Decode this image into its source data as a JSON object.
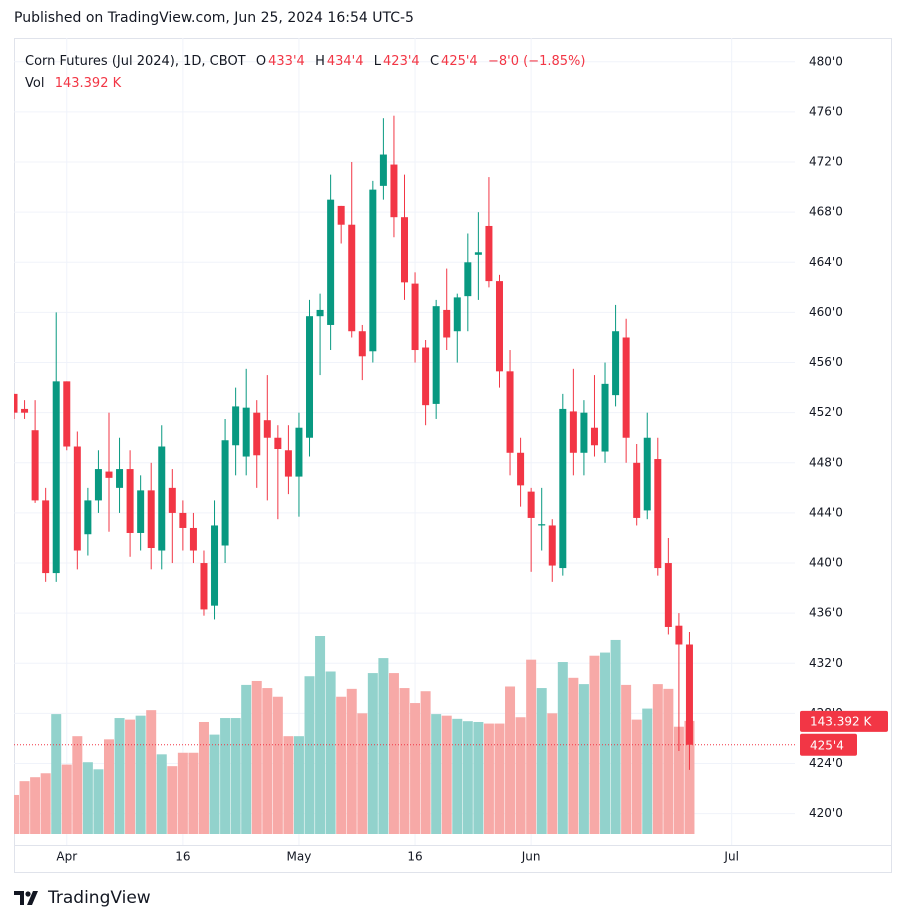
{
  "chart_data": {
    "type": "candlestick",
    "publisher": "Published on TradingView.com, Jun 25, 2024 16:54 UTC-5",
    "title": "Corn Futures (Jul 2024), 1D, CBOT",
    "legend": {
      "open_label": "O",
      "open": "433'4",
      "high_label": "H",
      "high": "434'4",
      "low_label": "L",
      "low": "423'4",
      "close_label": "C",
      "close": "425'4",
      "change": "−8'0 (−1.85%)",
      "volume_label": "Vol",
      "volume": "143.392 K"
    },
    "open": [
      453.5,
      452.3,
      450.6,
      445,
      439.2,
      454.5,
      449.3,
      442.3,
      445,
      447.3,
      446,
      447.5,
      442.4,
      445.8,
      441,
      446,
      444,
      442.8,
      440,
      436.6,
      441.4,
      449.4,
      448.5,
      452,
      451.4,
      450,
      449,
      446.9,
      450,
      459.7,
      459,
      468.5,
      467,
      458.5,
      456.9,
      470.1,
      471.8,
      467.6,
      462.3,
      457.2,
      452.7,
      460.2,
      458.5,
      461.3,
      464.6,
      466.9,
      462.5,
      455.3,
      448.8,
      445.7,
      443,
      443,
      439.6,
      452.1,
      448.8,
      450.8,
      448.9,
      453.4,
      458,
      448,
      444.2,
      448.3,
      440,
      435,
      433.5
    ],
    "high": [
      453.5,
      453,
      453,
      446,
      460,
      454.5,
      450.5,
      446,
      449,
      452,
      450,
      449,
      447,
      448,
      451,
      447.5,
      445,
      444,
      441,
      445,
      451.5,
      454,
      455.5,
      453,
      455,
      451,
      451,
      452,
      461,
      461.5,
      471,
      468.5,
      472,
      459,
      470.5,
      475.5,
      475.7,
      471,
      463.2,
      457.8,
      461,
      463.5,
      461.5,
      466.3,
      468,
      470.8,
      463,
      457,
      450,
      446,
      446,
      443.5,
      453.5,
      455.5,
      453,
      455,
      456,
      460.6,
      459.5,
      449.5,
      452,
      450,
      442,
      436,
      434.5
    ],
    "low": [
      451.5,
      451.5,
      444.8,
      438.5,
      438.5,
      449,
      439.5,
      440.6,
      444,
      442.5,
      444,
      440.5,
      441,
      439.5,
      439.5,
      440,
      441,
      440,
      435.8,
      435.5,
      440,
      447,
      447,
      446,
      445,
      443.5,
      445.5,
      443.7,
      448.5,
      455,
      457,
      465.5,
      458,
      454.6,
      456,
      469,
      466,
      461,
      456,
      451,
      451.5,
      457,
      456,
      458.5,
      461,
      462,
      454,
      447,
      444.5,
      439.3,
      441,
      438.5,
      439,
      447,
      447,
      448.5,
      448,
      452.5,
      448,
      443,
      443.5,
      439,
      434.3,
      425,
      423.5
    ],
    "close": [
      452,
      452,
      445,
      439.2,
      454.5,
      449.3,
      441,
      445,
      447.5,
      446.8,
      447.5,
      442.4,
      445.8,
      441.2,
      449.3,
      444,
      442.8,
      441,
      436.3,
      443,
      449.8,
      452.5,
      452.4,
      448.6,
      450,
      449.1,
      446.9,
      450.8,
      459.7,
      460.2,
      469,
      467,
      458.5,
      456.5,
      469.8,
      472.6,
      467.6,
      462.4,
      457,
      452.6,
      460.5,
      458,
      461.2,
      464,
      464.8,
      462.5,
      455.3,
      448.8,
      446.2,
      443.6,
      443.1,
      439.8,
      452.3,
      448.8,
      452,
      449.4,
      454.3,
      458.5,
      450,
      443.6,
      450,
      439.6,
      434.9,
      433.5,
      425.5
    ],
    "volume": [
      49.5,
      67,
      72,
      77,
      152,
      88,
      124,
      91,
      82,
      120,
      147,
      145,
      150,
      157,
      101,
      86,
      103,
      103,
      142,
      126,
      147,
      147,
      189,
      194,
      185,
      174,
      124,
      124,
      200,
      251,
      206,
      174,
      184,
      153,
      204,
      223,
      204,
      185,
      166,
      181,
      152,
      150,
      146,
      143,
      142,
      140,
      140,
      187,
      148,
      221,
      185,
      153,
      218,
      198,
      190,
      226,
      230,
      246,
      189,
      145,
      159,
      190,
      184,
      136,
      143.392
    ],
    "last_price_label": "425'4",
    "last_volume_label": "143.392 K",
    "xlim": [
      0,
      74
    ],
    "ylim": [
      417.5,
      481.9
    ],
    "xticks": [
      {
        "value": 5,
        "label": "Apr"
      },
      16,
      {
        "value": 27,
        "label": "May"
      },
      {
        "value": 38,
        "label": "16"
      },
      {
        "value": 49,
        "label": "Jun"
      },
      {
        "value": 68,
        "label": "Jul"
      }
    ],
    "yticks": [
      {
        "value": 420,
        "label": "420'0"
      },
      {
        "value": 424,
        "label": "424'0"
      },
      {
        "value": 428,
        "label": "428'0"
      },
      {
        "value": 432,
        "label": "432'0"
      },
      {
        "value": 436,
        "label": "436'0"
      },
      {
        "value": 440,
        "label": "440'0"
      },
      {
        "value": 444,
        "label": "444'0"
      },
      {
        "value": 448,
        "label": "448'0"
      },
      {
        "value": 452,
        "label": "452'0"
      },
      {
        "value": 456,
        "label": "456'0"
      },
      {
        "value": 460,
        "label": "460'0"
      },
      {
        "value": 464,
        "label": "464'0"
      },
      {
        "value": 468,
        "label": "468'0"
      },
      {
        "value": 472,
        "label": "472'0"
      },
      {
        "value": 476,
        "label": "476'0"
      },
      {
        "value": 480,
        "label": "480'0"
      }
    ],
    "grid": true,
    "up_color": "#089981",
    "down_color": "#f23645",
    "volume_up_color": "#92d2cc",
    "volume_down_color": "#f7a9a7"
  },
  "footer": {
    "brand": "TradingView"
  }
}
